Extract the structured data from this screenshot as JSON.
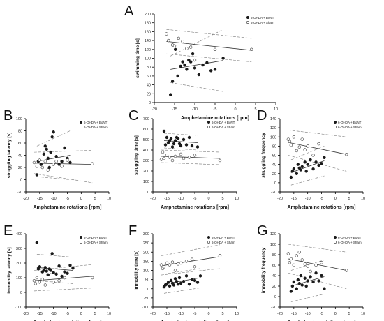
{
  "figure": {
    "xlabel": "Amphetamine rotations [rpm]",
    "legend": [
      "6-OHDA + BoNT",
      "6-OHDA + Sham"
    ],
    "colors": {
      "bont": "#1a1a1a",
      "sham": "#ffffff",
      "stroke": "#333333",
      "ci": "#777777",
      "fit": "#333333"
    }
  },
  "chart_data": [
    {
      "panel": "A",
      "type": "scatter",
      "ylabel": "swimming time [s]",
      "xticks": [
        -20,
        -15,
        -10,
        -5,
        0,
        5,
        10
      ],
      "yticks": [
        0,
        20,
        40,
        60,
        80,
        100,
        120,
        140,
        160,
        180,
        200
      ],
      "xlim": [
        -20,
        10
      ],
      "ylim": [
        0,
        200
      ],
      "grid": false,
      "legend_position": "top-right",
      "series": [
        {
          "name": "6-OHDA + BoNT",
          "x": [
            -16,
            -15.5,
            -14.8,
            -14.2,
            -13.5,
            -13,
            -12.5,
            -12,
            -11.5,
            -11,
            -10.5,
            -10,
            -9,
            -8,
            -7,
            -6,
            -5,
            -3
          ],
          "y": [
            18,
            48,
            120,
            60,
            82,
            92,
            85,
            75,
            96,
            92,
            110,
            78,
            63,
            85,
            90,
            72,
            75,
            100
          ]
        },
        {
          "name": "6-OHDA + Sham",
          "x": [
            -17,
            -16.5,
            -15.5,
            -15,
            -14,
            -13,
            -12,
            -11,
            -10,
            -5,
            4
          ],
          "y": [
            155,
            140,
            130,
            128,
            145,
            138,
            122,
            125,
            96,
            120,
            120
          ]
        }
      ],
      "fits": [
        {
          "series": "6-OHDA + BoNT",
          "x": [
            -16,
            -3
          ],
          "y": [
            75,
            95
          ],
          "ci_upper": [
            105,
            165
          ],
          "ci_lower": [
            45,
            25
          ]
        },
        {
          "series": "6-OHDA + Sham",
          "x": [
            -17,
            4
          ],
          "y": [
            138,
            118
          ],
          "ci_upper": [
            165,
            145
          ],
          "ci_lower": [
            110,
            92
          ]
        }
      ]
    },
    {
      "panel": "B",
      "type": "scatter",
      "ylabel": "struggling latency [s]",
      "xticks": [
        -20,
        -15,
        -10,
        -5,
        0,
        5,
        10
      ],
      "yticks": [
        -20,
        0,
        20,
        40,
        60,
        80,
        100
      ],
      "xlim": [
        -20,
        10
      ],
      "ylim": [
        -20,
        100
      ],
      "grid": false,
      "legend_position": "top-right",
      "series": [
        {
          "name": "6-OHDA + BoNT",
          "x": [
            -16,
            -15.5,
            -14.5,
            -13.5,
            -13,
            -12.5,
            -12,
            -11.5,
            -11,
            -10.5,
            -10,
            -9,
            -8,
            -7,
            -6,
            -5,
            -4
          ],
          "y": [
            8,
            30,
            25,
            42,
            55,
            50,
            35,
            20,
            45,
            70,
            78,
            38,
            25,
            30,
            52,
            35,
            28
          ]
        },
        {
          "name": "6-OHDA + Sham",
          "x": [
            -17,
            -16,
            -15,
            -14,
            -13,
            -12,
            -10,
            -9,
            -7,
            -5,
            4
          ],
          "y": [
            28,
            22,
            32,
            20,
            30,
            16,
            25,
            30,
            22,
            32,
            26
          ]
        }
      ],
      "fits": [
        {
          "series": "6-OHDA + BoNT",
          "x": [
            -16,
            -4
          ],
          "y": [
            30,
            40
          ],
          "ci_upper": [
            55,
            80
          ],
          "ci_lower": [
            5,
            0
          ]
        },
        {
          "series": "6-OHDA + Sham",
          "x": [
            -17,
            4
          ],
          "y": [
            27,
            25
          ],
          "ci_upper": [
            45,
            48
          ],
          "ci_lower": [
            10,
            -5
          ]
        }
      ]
    },
    {
      "panel": "C",
      "type": "scatter",
      "ylabel": "struggling time [s]",
      "xticks": [
        -20,
        -15,
        -10,
        -5,
        0,
        5,
        10
      ],
      "yticks": [
        0,
        100,
        200,
        300,
        400,
        500,
        600,
        700
      ],
      "xlim": [
        -20,
        10
      ],
      "ylim": [
        0,
        700
      ],
      "grid": false,
      "legend_position": "top-right",
      "series": [
        {
          "name": "6-OHDA + BoNT",
          "x": [
            -16,
            -15.5,
            -15,
            -14.5,
            -14,
            -13.5,
            -13,
            -12.5,
            -12,
            -11.5,
            -11,
            -10.5,
            -10,
            -9,
            -8,
            -7,
            -6,
            -4
          ],
          "y": [
            580,
            450,
            520,
            470,
            490,
            510,
            430,
            460,
            490,
            520,
            510,
            460,
            440,
            500,
            450,
            520,
            440,
            430
          ]
        },
        {
          "name": "6-OHDA + Sham",
          "x": [
            -17,
            -16.5,
            -16,
            -15,
            -14,
            -13,
            -12,
            -10,
            -9,
            -7,
            -5,
            4
          ],
          "y": [
            310,
            380,
            320,
            350,
            330,
            300,
            340,
            360,
            320,
            330,
            350,
            300
          ]
        }
      ],
      "fits": [
        {
          "series": "6-OHDA + BoNT",
          "x": [
            -16,
            -4
          ],
          "y": [
            490,
            470
          ],
          "ci_upper": [
            560,
            540
          ],
          "ci_lower": [
            420,
            400
          ]
        },
        {
          "series": "6-OHDA + Sham",
          "x": [
            -17,
            4
          ],
          "y": [
            340,
            320
          ],
          "ci_upper": [
            400,
            380
          ],
          "ci_lower": [
            280,
            260
          ]
        }
      ]
    },
    {
      "panel": "D",
      "type": "scatter",
      "ylabel": "struggling frequency",
      "xticks": [
        -20,
        -15,
        -10,
        -5,
        0,
        5,
        10
      ],
      "yticks": [
        -20,
        0,
        20,
        40,
        60,
        80,
        100,
        120,
        140
      ],
      "xlim": [
        -20,
        10
      ],
      "ylim": [
        -20,
        140
      ],
      "grid": false,
      "legend_position": "top-right",
      "series": [
        {
          "name": "6-OHDA + BoNT",
          "x": [
            -16,
            -15.5,
            -15,
            -14,
            -13.5,
            -13,
            -12.5,
            -12,
            -11,
            -10.5,
            -10,
            -9,
            -8,
            -7,
            -6,
            -5,
            -4
          ],
          "y": [
            12,
            25,
            30,
            20,
            40,
            32,
            28,
            35,
            45,
            25,
            40,
            50,
            30,
            45,
            38,
            42,
            55
          ]
        },
        {
          "name": "6-OHDA + Sham",
          "x": [
            -17,
            -16.5,
            -16,
            -15,
            -14,
            -13,
            -12,
            -11,
            -10,
            -8,
            -6,
            4
          ],
          "y": [
            95,
            90,
            82,
            100,
            70,
            78,
            95,
            72,
            80,
            60,
            85,
            62
          ]
        }
      ],
      "fits": [
        {
          "series": "6-OHDA + BoNT",
          "x": [
            -16,
            -4
          ],
          "y": [
            22,
            48
          ],
          "ci_upper": [
            50,
            80
          ],
          "ci_lower": [
            -5,
            15
          ]
        },
        {
          "series": "6-OHDA + Sham",
          "x": [
            -17,
            4
          ],
          "y": [
            88,
            62
          ],
          "ci_upper": [
            115,
            100
          ],
          "ci_lower": [
            60,
            25
          ]
        }
      ]
    },
    {
      "panel": "E",
      "type": "scatter",
      "ylabel": "immobility latency [s]",
      "xticks": [
        -20,
        -15,
        -10,
        -5,
        0,
        5,
        10
      ],
      "yticks": [
        -100,
        0,
        100,
        200,
        300,
        400
      ],
      "xlim": [
        -20,
        10
      ],
      "ylim": [
        -100,
        400
      ],
      "grid": false,
      "legend_position": "top-right",
      "series": [
        {
          "name": "6-OHDA + BoNT",
          "x": [
            -16,
            -15.5,
            -15,
            -14,
            -13.5,
            -13,
            -12.5,
            -12,
            -11.5,
            -11,
            -10.5,
            -10,
            -9,
            -8,
            -7,
            -6,
            -5,
            -4,
            -3
          ],
          "y": [
            340,
            160,
            175,
            140,
            150,
            170,
            145,
            120,
            160,
            150,
            265,
            135,
            125,
            180,
            110,
            140,
            130,
            185,
            165
          ]
        },
        {
          "name": "6-OHDA + Sham",
          "x": [
            -17,
            -16.5,
            -16,
            -15,
            -14,
            -13,
            -11,
            -10,
            -8,
            -6,
            4
          ],
          "y": [
            80,
            60,
            100,
            70,
            90,
            50,
            120,
            70,
            80,
            100,
            100
          ]
        }
      ],
      "fits": [
        {
          "series": "6-OHDA + BoNT",
          "x": [
            -16,
            -3
          ],
          "y": [
            170,
            150
          ],
          "ci_upper": [
            260,
            240
          ],
          "ci_lower": [
            80,
            60
          ]
        },
        {
          "series": "6-OHDA + Sham",
          "x": [
            -17,
            4
          ],
          "y": [
            80,
            110
          ],
          "ci_upper": [
            150,
            190
          ],
          "ci_lower": [
            10,
            30
          ]
        }
      ]
    },
    {
      "panel": "F",
      "type": "scatter",
      "ylabel": "immobility time [s]",
      "xticks": [
        -20,
        -15,
        -10,
        -5,
        0,
        5,
        10
      ],
      "yticks": [
        -100,
        -50,
        0,
        50,
        100,
        150,
        200,
        250,
        300
      ],
      "xlim": [
        -20,
        10
      ],
      "ylim": [
        -100,
        300
      ],
      "grid": false,
      "legend_position": "top-right",
      "series": [
        {
          "name": "6-OHDA + BoNT",
          "x": [
            -16,
            -15.5,
            -15,
            -14.5,
            -14,
            -13.5,
            -13,
            -12.5,
            -12,
            -11.5,
            -11,
            -10.5,
            -10,
            -9,
            -8,
            -7,
            -6,
            -5,
            -4,
            -3
          ],
          "y": [
            10,
            20,
            25,
            35,
            15,
            45,
            30,
            20,
            55,
            40,
            25,
            60,
            30,
            40,
            70,
            25,
            50,
            45,
            35,
            70
          ]
        },
        {
          "name": "6-OHDA + Sham",
          "x": [
            -17,
            -16.5,
            -16,
            -15,
            -14,
            -13,
            -12,
            -11,
            -10,
            -8,
            -6,
            -5,
            4
          ],
          "y": [
            130,
            110,
            120,
            140,
            130,
            145,
            100,
            135,
            140,
            150,
            160,
            120,
            180
          ]
        }
      ],
      "fits": [
        {
          "series": "6-OHDA + BoNT",
          "x": [
            -16,
            -3
          ],
          "y": [
            25,
            60
          ],
          "ci_upper": [
            80,
            110
          ],
          "ci_lower": [
            -25,
            5
          ]
        },
        {
          "series": "6-OHDA + Sham",
          "x": [
            -17,
            4
          ],
          "y": [
            125,
            175
          ],
          "ci_upper": [
            180,
            240
          ],
          "ci_lower": [
            75,
            110
          ]
        }
      ]
    },
    {
      "panel": "G",
      "type": "scatter",
      "ylabel": "immobility frequency",
      "xticks": [
        -20,
        -15,
        -10,
        -5,
        0,
        5,
        10
      ],
      "yticks": [
        -20,
        0,
        20,
        40,
        60,
        80,
        100,
        120
      ],
      "xlim": [
        -20,
        10
      ],
      "ylim": [
        -20,
        120
      ],
      "grid": false,
      "legend_position": "top-right",
      "series": [
        {
          "name": "6-OHDA + BoNT",
          "x": [
            -16,
            -15.5,
            -15,
            -14,
            -13.5,
            -13,
            -12.5,
            -12,
            -11,
            -10.5,
            -10,
            -9,
            -8,
            -7,
            -6,
            -5,
            -4
          ],
          "y": [
            10,
            20,
            28,
            15,
            32,
            25,
            40,
            22,
            35,
            20,
            30,
            38,
            28,
            45,
            30,
            40,
            15
          ]
        },
        {
          "name": "6-OHDA + Sham",
          "x": [
            -17,
            -16.5,
            -16,
            -15,
            -14,
            -13,
            -12,
            -11,
            -10,
            -9,
            -7,
            -5,
            4
          ],
          "y": [
            82,
            65,
            72,
            60,
            78,
            85,
            70,
            62,
            58,
            48,
            60,
            65,
            50
          ]
        }
      ],
      "fits": [
        {
          "series": "6-OHDA + BoNT",
          "x": [
            -16,
            -4
          ],
          "y": [
            20,
            38
          ],
          "ci_upper": [
            50,
            70
          ],
          "ci_lower": [
            -10,
            5
          ]
        },
        {
          "series": "6-OHDA + Sham",
          "x": [
            -17,
            4
          ],
          "y": [
            72,
            50
          ],
          "ci_upper": [
            100,
            85
          ],
          "ci_lower": [
            45,
            15
          ]
        }
      ]
    }
  ]
}
